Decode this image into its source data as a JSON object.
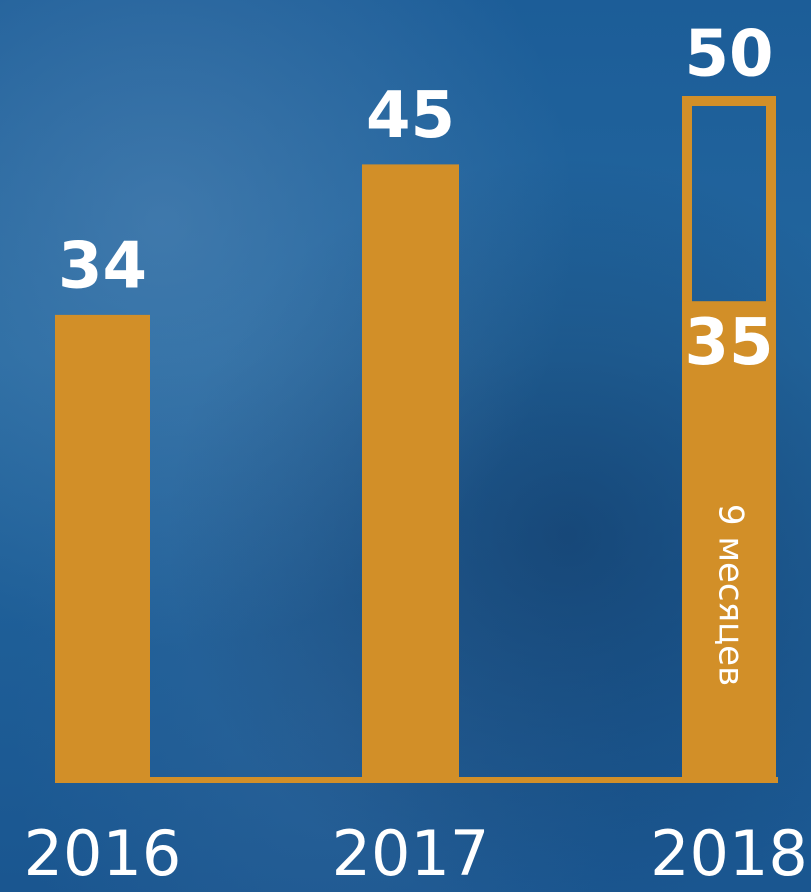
{
  "chart_data": {
    "type": "bar",
    "categories": [
      "2016",
      "2017",
      "2018"
    ],
    "values": [
      34,
      45,
      35
    ],
    "outline_values": [
      null,
      null,
      50
    ],
    "color": "#d28f28",
    "ylim": [
      0,
      50
    ],
    "annotation": "9 месяцев"
  }
}
